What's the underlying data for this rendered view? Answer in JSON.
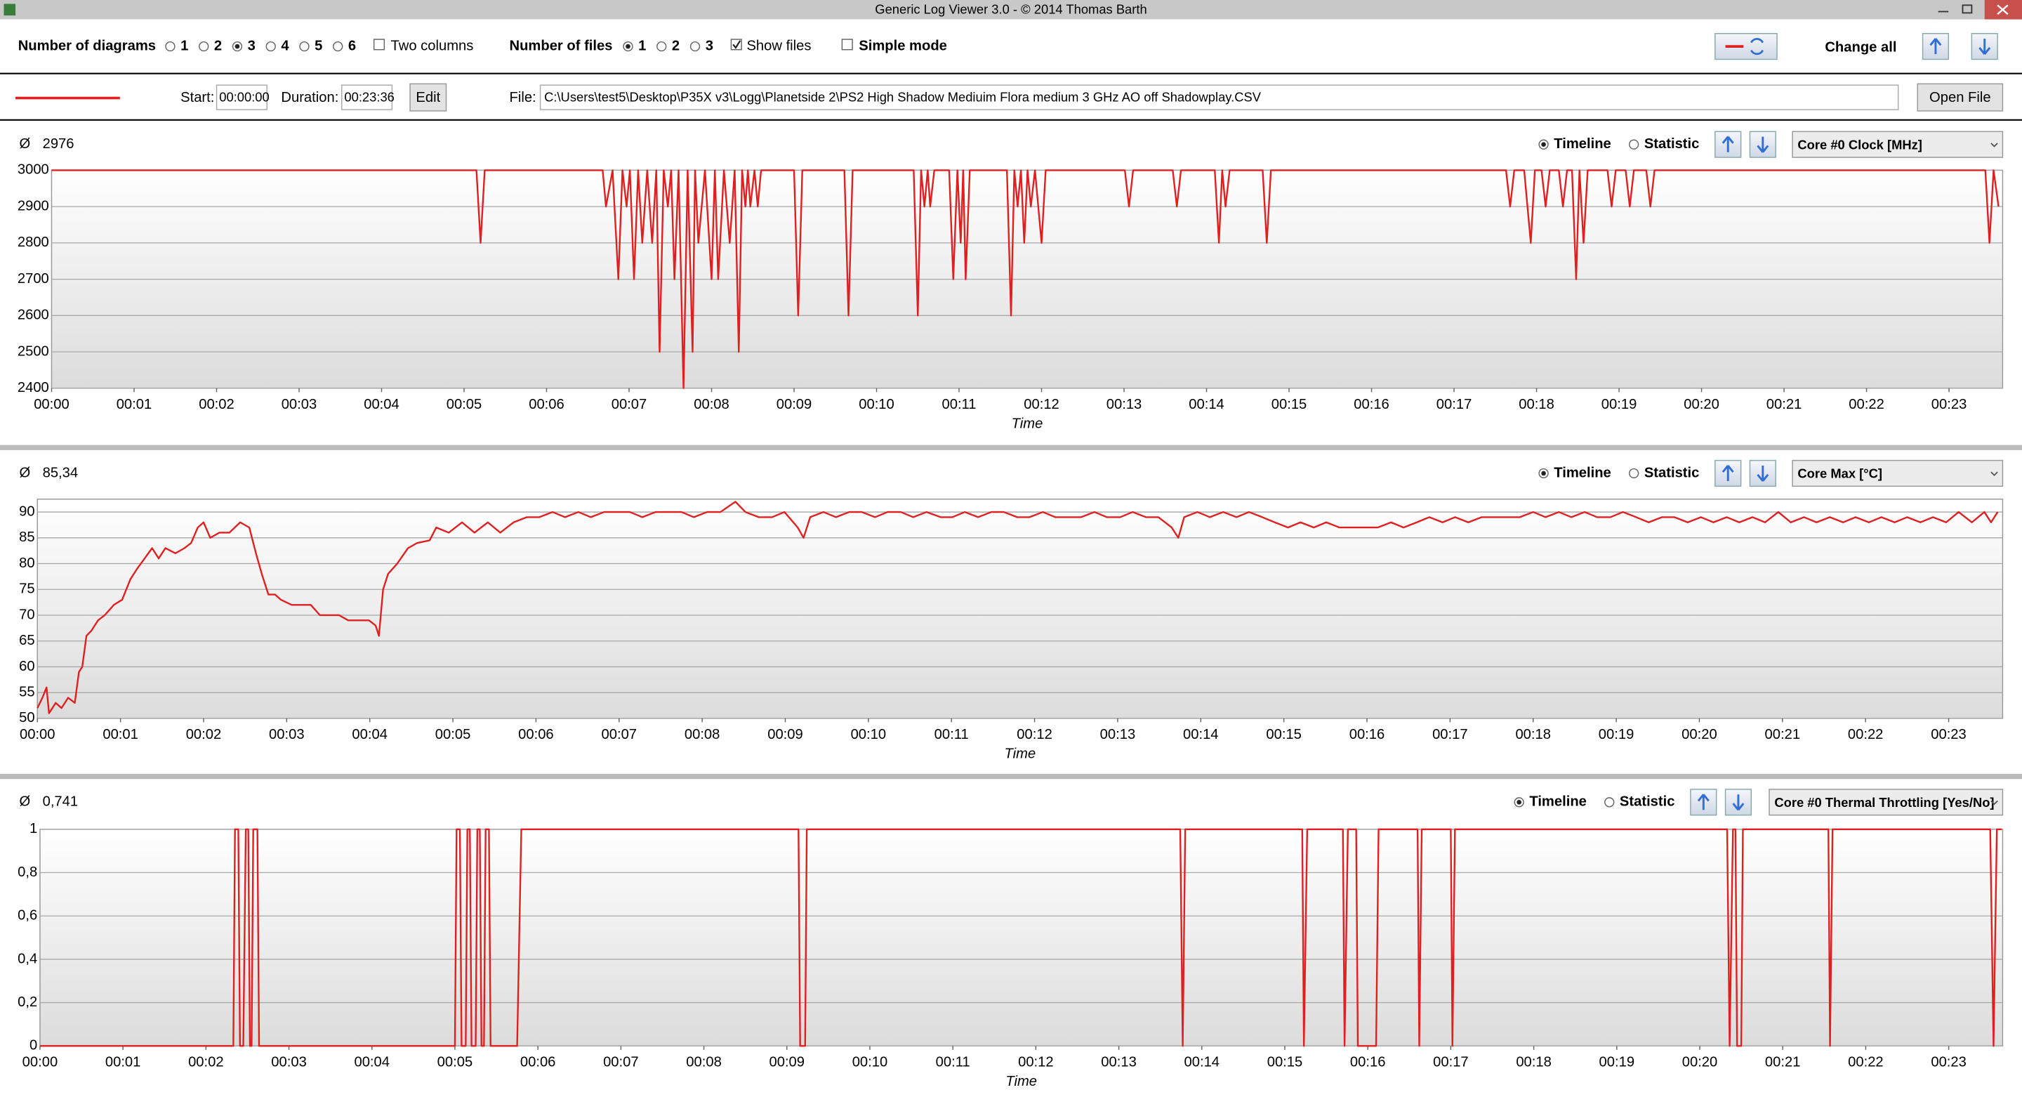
{
  "window_title": "Generic Log Viewer 3.0 - © 2014 Thomas Barth",
  "toolbar": {
    "diagrams_label": "Number of diagrams",
    "diagram_options": [
      "1",
      "2",
      "3",
      "4",
      "5",
      "6"
    ],
    "diagrams_selected": "3",
    "two_columns": {
      "label": "Two columns",
      "checked": false
    },
    "files_label": "Number of files",
    "file_options": [
      "1",
      "2",
      "3"
    ],
    "files_selected": "1",
    "show_files": {
      "label": "Show files",
      "checked": true
    },
    "simple_mode": {
      "label": "Simple mode",
      "checked": false
    },
    "change_all": "Change all"
  },
  "file_bar": {
    "line_color": "#e02020",
    "start_label": "Start:",
    "start": "00:00:00",
    "duration_label": "Duration:",
    "duration": "00:23:36",
    "edit": "Edit",
    "file_label": "File:",
    "path": "C:\\Users\\test5\\Desktop\\P35X v3\\Logg\\Planetside 2\\PS2 High Shadow Mediuim Flora medium 3 GHz AO off Shadowplay.CSV",
    "open": "Open File"
  },
  "chart_data": [
    {
      "type": "line",
      "average_symbol": "Ø",
      "average": "2976",
      "view_options": [
        "Timeline",
        "Statistic"
      ],
      "view_selected": "Timeline",
      "channel": "Core #0 Clock [MHz]",
      "x_label": "Time",
      "color": "#e02020",
      "grid": true,
      "xlim": [
        0,
        23.65
      ],
      "ylim": [
        2400,
        3000
      ],
      "yticks": [
        2400,
        2500,
        2600,
        2700,
        2800,
        2900,
        3000
      ],
      "xticks": [
        {
          "value": 0,
          "label": "00:00"
        },
        {
          "value": 1,
          "label": "00:01"
        },
        {
          "value": 2,
          "label": "00:02"
        },
        {
          "value": 3,
          "label": "00:03"
        },
        {
          "value": 4,
          "label": "00:04"
        },
        {
          "value": 5,
          "label": "00:05"
        },
        {
          "value": 6,
          "label": "00:06"
        },
        {
          "value": 7,
          "label": "00:07"
        },
        {
          "value": 8,
          "label": "00:08"
        },
        {
          "value": 9,
          "label": "00:09"
        },
        {
          "value": 10,
          "label": "00:10"
        },
        {
          "value": 11,
          "label": "00:11"
        },
        {
          "value": 12,
          "label": "00:12"
        },
        {
          "value": 13,
          "label": "00:13"
        },
        {
          "value": 14,
          "label": "00:14"
        },
        {
          "value": 15,
          "label": "00:15"
        },
        {
          "value": 16,
          "label": "00:16"
        },
        {
          "value": 17,
          "label": "00:17"
        },
        {
          "value": 18,
          "label": "00:18"
        },
        {
          "value": 19,
          "label": "00:19"
        },
        {
          "value": 20,
          "label": "00:20"
        },
        {
          "value": 21,
          "label": "00:21"
        },
        {
          "value": 22,
          "label": "00:22"
        },
        {
          "value": 23,
          "label": "00:23"
        }
      ],
      "x": [
        0,
        5.15,
        5.2,
        5.25,
        6.68,
        6.72,
        6.8,
        6.87,
        6.92,
        6.97,
        7.01,
        7.06,
        7.11,
        7.16,
        7.22,
        7.28,
        7.33,
        7.37,
        7.42,
        7.47,
        7.51,
        7.55,
        7.6,
        7.66,
        7.71,
        7.77,
        7.8,
        7.84,
        7.92,
        8.0,
        8.04,
        8.08,
        8.15,
        8.22,
        8.28,
        8.33,
        8.37,
        8.41,
        8.44,
        8.47,
        8.52,
        8.56,
        8.6,
        9.0,
        9.05,
        9.1,
        9.61,
        9.66,
        9.71,
        10.45,
        10.5,
        10.54,
        10.58,
        10.62,
        10.65,
        10.7,
        10.88,
        10.93,
        10.98,
        11.02,
        11.05,
        11.08,
        11.13,
        11.58,
        11.63,
        11.67,
        11.71,
        11.75,
        11.79,
        11.83,
        11.87,
        11.92,
        12.0,
        12.05,
        13.01,
        13.06,
        13.11,
        13.59,
        13.64,
        13.69,
        14.1,
        14.15,
        14.19,
        14.23,
        14.28,
        14.68,
        14.73,
        14.78,
        17.63,
        17.68,
        17.73,
        17.85,
        17.93,
        17.98,
        18.06,
        18.11,
        18.16,
        18.27,
        18.32,
        18.37,
        18.43,
        18.48,
        18.52,
        18.57,
        18.62,
        18.86,
        18.91,
        18.96,
        19.08,
        19.13,
        19.18,
        19.33,
        19.38,
        19.43,
        23.44,
        23.49,
        23.54,
        23.6
      ],
      "values": [
        3000,
        3000,
        2800,
        3000,
        3000,
        2900,
        3000,
        2700,
        3000,
        2900,
        3000,
        2700,
        3000,
        2800,
        3000,
        2800,
        3000,
        2500,
        3000,
        2900,
        3000,
        2700,
        3000,
        2400,
        3000,
        2500,
        3000,
        2800,
        3000,
        2700,
        3000,
        2700,
        3000,
        2800,
        3000,
        2500,
        3000,
        2900,
        3000,
        2900,
        3000,
        2900,
        3000,
        3000,
        2600,
        3000,
        3000,
        2600,
        3000,
        3000,
        2600,
        3000,
        2900,
        3000,
        2900,
        3000,
        3000,
        2700,
        3000,
        2800,
        3000,
        2700,
        3000,
        3000,
        2600,
        3000,
        2900,
        3000,
        2800,
        3000,
        2900,
        3000,
        2800,
        3000,
        3000,
        2900,
        3000,
        3000,
        2900,
        3000,
        3000,
        2800,
        3000,
        2900,
        3000,
        3000,
        2800,
        3000,
        3000,
        2900,
        3000,
        3000,
        2800,
        3000,
        3000,
        2900,
        3000,
        3000,
        2900,
        3000,
        3000,
        2700,
        3000,
        2800,
        3000,
        3000,
        2900,
        3000,
        3000,
        2900,
        3000,
        3000,
        2900,
        3000,
        3000,
        2800,
        3000,
        2900
      ]
    },
    {
      "type": "line",
      "average_symbol": "Ø",
      "average": "85,34",
      "view_options": [
        "Timeline",
        "Statistic"
      ],
      "view_selected": "Timeline",
      "channel": "Core Max [°C]",
      "x_label": "Time",
      "color": "#e02020",
      "grid": true,
      "xlim": [
        0,
        23.65
      ],
      "ylim": [
        50,
        92.5
      ],
      "yticks": [
        50,
        55,
        60,
        65,
        70,
        75,
        80,
        85,
        90
      ],
      "xticks": [
        {
          "value": 0,
          "label": "00:00"
        },
        {
          "value": 1,
          "label": "00:01"
        },
        {
          "value": 2,
          "label": "00:02"
        },
        {
          "value": 3,
          "label": "00:03"
        },
        {
          "value": 4,
          "label": "00:04"
        },
        {
          "value": 5,
          "label": "00:05"
        },
        {
          "value": 6,
          "label": "00:06"
        },
        {
          "value": 7,
          "label": "00:07"
        },
        {
          "value": 8,
          "label": "00:08"
        },
        {
          "value": 9,
          "label": "00:09"
        },
        {
          "value": 10,
          "label": "00:10"
        },
        {
          "value": 11,
          "label": "00:11"
        },
        {
          "value": 12,
          "label": "00:12"
        },
        {
          "value": 13,
          "label": "00:13"
        },
        {
          "value": 14,
          "label": "00:14"
        },
        {
          "value": 15,
          "label": "00:15"
        },
        {
          "value": 16,
          "label": "00:16"
        },
        {
          "value": 17,
          "label": "00:17"
        },
        {
          "value": 18,
          "label": "00:18"
        },
        {
          "value": 19,
          "label": "00:19"
        },
        {
          "value": 20,
          "label": "00:20"
        },
        {
          "value": 21,
          "label": "00:21"
        },
        {
          "value": 22,
          "label": "00:22"
        },
        {
          "value": 23,
          "label": "00:23"
        }
      ],
      "x": [
        0,
        0.06,
        0.11,
        0.14,
        0.22,
        0.29,
        0.37,
        0.45,
        0.5,
        0.54,
        0.59,
        0.65,
        0.73,
        0.81,
        0.92,
        1.02,
        1.12,
        1.2,
        1.29,
        1.38,
        1.46,
        1.54,
        1.66,
        1.77,
        1.85,
        1.93,
        2.0,
        2.08,
        2.19,
        2.31,
        2.44,
        2.55,
        2.63,
        2.7,
        2.78,
        2.86,
        2.93,
        3.06,
        3.17,
        3.29,
        3.4,
        3.52,
        3.63,
        3.74,
        3.87,
        3.99,
        4.07,
        4.11,
        4.16,
        4.22,
        4.33,
        4.46,
        4.57,
        4.72,
        4.8,
        4.95,
        5.11,
        5.26,
        5.42,
        5.57,
        5.73,
        5.89,
        6.04,
        6.2,
        6.35,
        6.51,
        6.66,
        6.82,
        6.97,
        7.13,
        7.28,
        7.44,
        7.59,
        7.75,
        7.9,
        8.06,
        8.22,
        8.4,
        8.52,
        8.68,
        8.84,
        8.99,
        9.15,
        9.22,
        9.3,
        9.46,
        9.61,
        9.77,
        9.92,
        10.08,
        10.23,
        10.39,
        10.54,
        10.7,
        10.87,
        11.01,
        11.16,
        11.32,
        11.48,
        11.63,
        11.79,
        11.94,
        12.1,
        12.25,
        12.41,
        12.56,
        12.72,
        12.87,
        13.03,
        13.18,
        13.34,
        13.49,
        13.65,
        13.73,
        13.8,
        13.96,
        14.11,
        14.27,
        14.43,
        14.58,
        14.74,
        14.89,
        15.05,
        15.2,
        15.36,
        15.51,
        15.67,
        15.82,
        15.98,
        16.13,
        16.29,
        16.44,
        16.6,
        16.75,
        16.91,
        17.06,
        17.22,
        17.38,
        17.53,
        17.69,
        17.84,
        18.0,
        18.15,
        18.31,
        18.46,
        18.62,
        18.77,
        18.93,
        19.08,
        19.24,
        19.39,
        19.55,
        19.7,
        19.86,
        20.02,
        20.17,
        20.33,
        20.48,
        20.64,
        20.79,
        20.95,
        21.1,
        21.26,
        21.41,
        21.57,
        21.73,
        21.88,
        22.04,
        22.19,
        22.35,
        22.5,
        22.66,
        22.81,
        22.97,
        23.12,
        23.28,
        23.43,
        23.51,
        23.59
      ],
      "values": [
        52,
        54,
        56,
        51,
        53,
        52,
        54,
        53,
        59,
        60,
        66,
        67,
        69,
        70,
        72,
        73,
        77,
        79,
        81,
        83,
        81,
        83,
        82,
        83,
        84,
        87,
        88,
        85,
        86,
        86,
        88,
        87,
        82,
        78,
        74,
        74,
        73,
        72,
        72,
        72,
        70,
        70,
        70,
        69,
        69,
        69,
        68,
        66,
        75,
        78,
        80,
        83,
        84,
        84.5,
        87,
        86,
        88,
        86,
        88,
        86,
        88,
        89,
        89,
        90,
        89,
        90,
        89,
        90,
        90,
        90,
        89,
        90,
        90,
        90,
        89,
        90,
        90,
        92,
        90,
        89,
        89,
        90,
        87,
        85,
        89,
        90,
        89,
        90,
        90,
        89,
        90,
        90,
        89,
        90,
        89,
        89,
        90,
        89,
        90,
        90,
        89,
        89,
        90,
        89,
        89,
        89,
        90,
        89,
        89,
        90,
        89,
        89,
        87,
        85,
        89,
        90,
        89,
        90,
        89,
        90,
        89,
        88,
        87,
        88,
        87,
        88,
        87,
        87,
        87,
        87,
        88,
        87,
        88,
        89,
        88,
        89,
        88,
        89,
        89,
        89,
        89,
        90,
        89,
        90,
        89,
        90,
        89,
        89,
        90,
        89,
        88,
        89,
        89,
        88,
        89,
        88,
        89,
        88,
        89,
        88,
        90,
        88,
        89,
        88,
        89,
        88,
        89,
        88,
        89,
        88,
        89,
        88,
        89,
        88,
        90,
        88,
        90,
        88,
        90
      ]
    },
    {
      "type": "line",
      "average_symbol": "Ø",
      "average": "0,741",
      "view_options": [
        "Timeline",
        "Statistic"
      ],
      "view_selected": "Timeline",
      "channel": "Core #0 Thermal Throttling [Yes/No]",
      "x_label": "Time",
      "color": "#e02020",
      "grid": true,
      "xlim": [
        0,
        23.65
      ],
      "ylim": [
        0,
        1
      ],
      "yticks": [
        0,
        {
          "value": 0.2,
          "label": "0,2"
        },
        {
          "value": 0.4,
          "label": "0,4"
        },
        {
          "value": 0.6,
          "label": "0,6"
        },
        {
          "value": 0.8,
          "label": "0,8"
        },
        1
      ],
      "xticks": [
        {
          "value": 0,
          "label": "00:00"
        },
        {
          "value": 1,
          "label": "00:01"
        },
        {
          "value": 2,
          "label": "00:02"
        },
        {
          "value": 3,
          "label": "00:03"
        },
        {
          "value": 4,
          "label": "00:04"
        },
        {
          "value": 5,
          "label": "00:05"
        },
        {
          "value": 6,
          "label": "00:06"
        },
        {
          "value": 7,
          "label": "00:07"
        },
        {
          "value": 8,
          "label": "00:08"
        },
        {
          "value": 9,
          "label": "00:09"
        },
        {
          "value": 10,
          "label": "00:10"
        },
        {
          "value": 11,
          "label": "00:11"
        },
        {
          "value": 12,
          "label": "00:12"
        },
        {
          "value": 13,
          "label": "00:13"
        },
        {
          "value": 14,
          "label": "00:14"
        },
        {
          "value": 15,
          "label": "00:15"
        },
        {
          "value": 16,
          "label": "00:16"
        },
        {
          "value": 17,
          "label": "00:17"
        },
        {
          "value": 18,
          "label": "00:18"
        },
        {
          "value": 19,
          "label": "00:19"
        },
        {
          "value": 20,
          "label": "00:20"
        },
        {
          "value": 21,
          "label": "00:21"
        },
        {
          "value": 22,
          "label": "00:22"
        },
        {
          "value": 23,
          "label": "00:23"
        }
      ],
      "x": [
        0,
        2.33,
        2.35,
        2.39,
        2.41,
        2.45,
        2.48,
        2.51,
        2.53,
        2.55,
        2.57,
        2.62,
        2.64,
        5.0,
        5.02,
        5.06,
        5.08,
        5.13,
        5.15,
        5.18,
        5.2,
        5.25,
        5.27,
        5.3,
        5.32,
        5.35,
        5.37,
        5.41,
        5.43,
        5.75,
        5.8,
        9.14,
        9.16,
        9.22,
        9.24,
        13.74,
        13.77,
        13.8,
        15.21,
        15.23,
        15.27,
        15.7,
        15.72,
        15.76,
        15.86,
        15.88,
        16.1,
        16.13,
        16.6,
        16.62,
        16.65,
        17.0,
        17.02,
        17.05,
        20.33,
        20.36,
        20.4,
        20.43,
        20.45,
        20.5,
        20.52,
        21.55,
        21.57,
        21.6,
        23.5,
        23.54,
        23.58,
        23.64
      ],
      "values": [
        0,
        0,
        1,
        1,
        0,
        0,
        1,
        1,
        0,
        0,
        1,
        1,
        0,
        0,
        1,
        1,
        0,
        0,
        1,
        1,
        0,
        0,
        1,
        1,
        0,
        0,
        1,
        1,
        0,
        0,
        1,
        1,
        0,
        0,
        1,
        1,
        0,
        1,
        1,
        0,
        1,
        1,
        0,
        1,
        1,
        0,
        0,
        1,
        1,
        0,
        1,
        1,
        0,
        1,
        1,
        0,
        1,
        1,
        0,
        0,
        1,
        1,
        0,
        1,
        1,
        0,
        1,
        1
      ]
    }
  ]
}
